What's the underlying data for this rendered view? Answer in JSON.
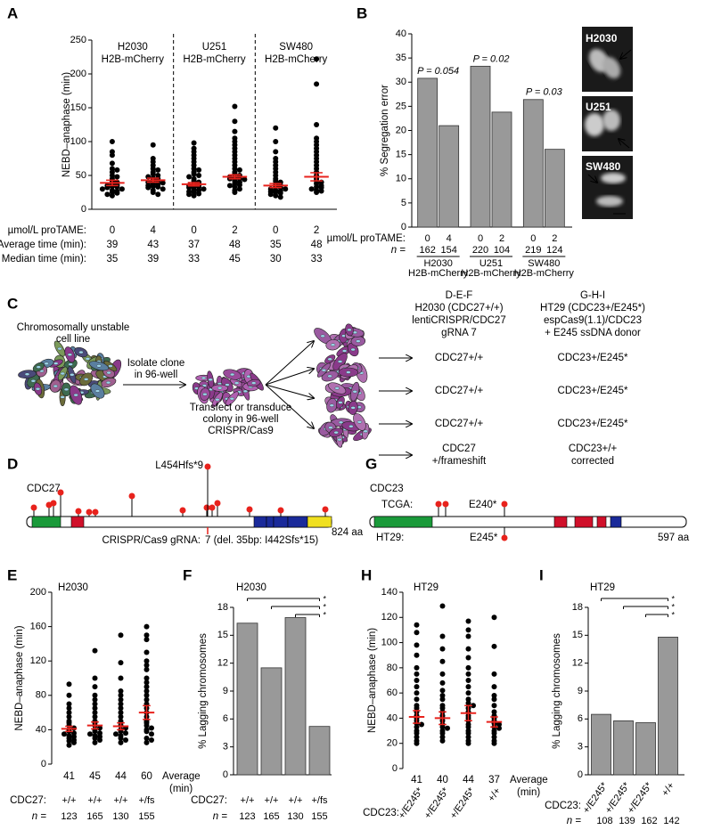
{
  "panel_labels": [
    "A",
    "B",
    "C",
    "D",
    "E",
    "F",
    "G",
    "H",
    "I"
  ],
  "chart_data": [
    {
      "type": "strip",
      "ylabel": "NEBD–anaphase (min)",
      "ylim": [
        0,
        250
      ],
      "yticks": [
        0,
        50,
        100,
        150,
        200,
        250
      ],
      "groups": [
        {
          "name": "H2030",
          "subtitle": "H2B-mCherry"
        },
        {
          "name": "U251",
          "subtitle": "H2B-mCherry"
        },
        {
          "name": "SW480",
          "subtitle": "H2B-mCherry"
        }
      ],
      "values": [
        [
          100,
          85,
          80,
          68,
          60,
          58,
          55,
          50,
          48,
          45,
          42,
          40,
          38,
          36,
          35,
          34,
          33,
          32,
          30,
          30,
          28,
          27,
          25,
          24,
          22,
          20
        ],
        [
          95,
          75,
          70,
          65,
          60,
          58,
          55,
          52,
          50,
          48,
          46,
          45,
          43,
          42,
          40,
          39,
          38,
          37,
          35,
          34,
          33,
          32,
          30,
          28,
          25,
          22
        ],
        [
          98,
          90,
          85,
          80,
          75,
          70,
          65,
          60,
          58,
          55,
          52,
          50,
          48,
          45,
          42,
          40,
          38,
          36,
          35,
          33,
          33,
          32,
          30,
          29,
          28,
          26,
          25,
          23,
          22,
          20
        ],
        [
          152,
          130,
          115,
          105,
          100,
          95,
          90,
          85,
          80,
          75,
          70,
          65,
          60,
          58,
          55,
          52,
          50,
          48,
          46,
          45,
          45,
          44,
          42,
          40,
          38,
          36,
          35,
          33,
          30,
          28,
          25
        ],
        [
          120,
          100,
          85,
          75,
          70,
          65,
          60,
          55,
          50,
          45,
          42,
          40,
          38,
          35,
          33,
          32,
          30,
          30,
          28,
          27,
          26,
          25,
          24,
          22,
          20,
          18
        ],
        [
          222,
          185,
          125,
          105,
          100,
          95,
          90,
          85,
          80,
          75,
          70,
          65,
          60,
          55,
          50,
          45,
          42,
          40,
          38,
          35,
          33,
          32,
          30,
          28,
          27,
          25
        ]
      ],
      "errors": [
        4,
        3,
        2.5,
        3,
        3,
        6
      ],
      "rows": [
        {
          "label": "µmol/L proTAME:",
          "values": [
            0,
            4,
            0,
            2,
            0,
            2
          ]
        },
        {
          "label": "Average time (min):",
          "values": [
            39,
            43,
            37,
            48,
            35,
            48
          ]
        },
        {
          "label": "Median time (min):",
          "values": [
            35,
            39,
            33,
            45,
            30,
            33
          ]
        }
      ]
    },
    {
      "type": "bar",
      "ylabel": "% Segregation error",
      "ylim": [
        0,
        40
      ],
      "yticks": [
        0,
        5,
        10,
        15,
        20,
        25,
        30,
        35,
        40
      ],
      "values": [
        30.8,
        21,
        33.3,
        23.8,
        26.4,
        16.1
      ],
      "color": "#999999",
      "annotations": [
        "P = 0.054",
        "P = 0.02",
        "P = 0.03"
      ],
      "doses_label": "µmol/L proTAME:",
      "doses": [
        0,
        4,
        0,
        2,
        0,
        2
      ],
      "n_label": "n =",
      "n": [
        162,
        154,
        220,
        104,
        219,
        124
      ],
      "groups": [
        {
          "name": "H2030",
          "subtitle": "H2B-mCherry"
        },
        {
          "name": "U251",
          "subtitle": "H2B-mCherry"
        },
        {
          "name": "SW480",
          "subtitle": "H2B-mCherry"
        }
      ]
    },
    {
      "type": "strip",
      "title": "H2030",
      "ylabel": "NEBD–anaphase (min)",
      "ylim": [
        0,
        200
      ],
      "yticks": [
        0,
        40,
        80,
        120,
        160,
        200
      ],
      "values": [
        [
          93,
          80,
          70,
          65,
          60,
          55,
          50,
          48,
          45,
          42,
          40,
          38,
          36,
          35,
          33,
          32,
          30,
          28,
          27,
          25,
          22
        ],
        [
          132,
          100,
          90,
          80,
          75,
          70,
          65,
          60,
          55,
          50,
          48,
          45,
          42,
          40,
          38,
          36,
          35,
          33,
          32,
          30,
          28,
          25
        ],
        [
          150,
          118,
          100,
          85,
          80,
          75,
          70,
          65,
          60,
          55,
          50,
          48,
          45,
          42,
          40,
          38,
          36,
          35,
          33,
          30,
          28,
          25
        ],
        [
          160,
          150,
          145,
          130,
          120,
          115,
          110,
          100,
          95,
          90,
          85,
          80,
          75,
          70,
          65,
          60,
          55,
          50,
          48,
          45,
          42,
          40,
          38,
          35,
          30,
          28,
          25
        ]
      ],
      "errors": [
        3,
        4,
        4,
        8
      ],
      "averages": [
        41,
        45,
        44,
        60
      ],
      "average_label": [
        "Average",
        "(min)"
      ],
      "category_label": "CDC27:",
      "categories": [
        "+/+",
        "+/+",
        "+/+",
        "+/fs"
      ],
      "category_colors": [
        "#000000",
        "#000000",
        "#000000",
        "#e8221c"
      ],
      "n_label": "n =",
      "n": [
        123,
        165,
        130,
        155
      ]
    },
    {
      "type": "bar",
      "title": "H2030",
      "ylabel": "% Lagging chromosomes",
      "ylim": [
        0,
        18
      ],
      "yticks": [
        0,
        3,
        6,
        9,
        12,
        15,
        18
      ],
      "values": [
        16.3,
        11.5,
        16.9,
        5.2
      ],
      "color": "#999999",
      "significance": [
        "*",
        "*",
        "*"
      ],
      "category_label": "CDC27:",
      "categories": [
        "+/+",
        "+/+",
        "+/+",
        "+/fs"
      ],
      "category_colors": [
        "#000000",
        "#000000",
        "#000000",
        "#e8221c"
      ],
      "n_label": "n =",
      "n": [
        123,
        165,
        130,
        155
      ]
    },
    {
      "type": "strip",
      "title": "HT29",
      "ylabel": "NEBD–anaphase (min)",
      "ylim": [
        0,
        140
      ],
      "yticks": [
        0,
        20,
        40,
        60,
        80,
        100,
        120,
        140
      ],
      "values": [
        [
          114,
          108,
          98,
          90,
          80,
          75,
          70,
          65,
          60,
          55,
          50,
          48,
          45,
          42,
          40,
          38,
          36,
          35,
          33,
          30,
          28,
          25,
          22,
          20
        ],
        [
          129,
          105,
          95,
          85,
          75,
          68,
          62,
          58,
          55,
          50,
          48,
          45,
          42,
          40,
          38,
          35,
          33,
          32,
          30,
          28,
          25,
          22
        ],
        [
          117,
          110,
          105,
          95,
          88,
          80,
          75,
          70,
          65,
          60,
          55,
          52,
          50,
          48,
          45,
          42,
          40,
          38,
          35,
          33,
          30,
          28,
          25,
          22,
          20
        ],
        [
          120,
          97,
          75,
          65,
          58,
          55,
          50,
          45,
          42,
          40,
          38,
          36,
          35,
          33,
          32,
          30,
          28,
          25,
          22,
          20
        ]
      ],
      "errors": [
        5,
        5,
        6,
        4
      ],
      "averages": [
        41,
        40,
        44,
        37
      ],
      "average_label": [
        "Average",
        "(min)"
      ],
      "category_label": "CDC23:",
      "categories": [
        "+/E245*",
        "+/E245*",
        "+/E245*",
        "+/+"
      ],
      "rotate_labels": true
    },
    {
      "type": "bar",
      "title": "HT29",
      "ylabel": "% Lagging chromosomes",
      "ylim": [
        0,
        18
      ],
      "yticks": [
        0,
        3,
        6,
        9,
        12,
        15,
        18
      ],
      "values": [
        6.5,
        5.8,
        5.6,
        14.8
      ],
      "color": "#999999",
      "significance": [
        "*",
        "*",
        "*"
      ],
      "category_label": "CDC23:",
      "categories": [
        "+/E245*",
        "+/E245*",
        "+/E245*",
        "+/+"
      ],
      "rotate_labels": true,
      "n_label": "n =",
      "n": [
        108,
        139,
        162,
        142
      ]
    }
  ],
  "micrographs": [
    "H2030",
    "U251",
    "SW480"
  ],
  "workflow": {
    "source": [
      "Chromosomally unstable",
      "cell line"
    ],
    "step1": [
      "Isolate clone",
      "in 96-well"
    ],
    "step2": [
      "Transfect or transduce",
      "colony in 96-well",
      "CRISPR/Cas9"
    ],
    "columns": [
      {
        "header": [
          "D-E-F",
          "H2030 (CDC27+/+)",
          "lentiCRISPR/CDC27",
          "gRNA 7"
        ],
        "outcomes": [
          [
            "CDC27+/+"
          ],
          [
            "CDC27+/+"
          ],
          [
            "CDC27+/+"
          ],
          [
            "CDC27",
            "+/frameshift"
          ]
        ]
      },
      {
        "header": [
          "G-H-I",
          "HT29 (CDC23+/E245*)",
          "espCas9(1.1)/CDC23",
          "+ E245 ssDNA donor"
        ],
        "outcomes": [
          [
            "CDC23+/E245*"
          ],
          [
            "CDC23+/E245*"
          ],
          [
            "CDC23+/E245*"
          ],
          [
            "CDC23+/+",
            "corrected"
          ]
        ]
      }
    ]
  },
  "cdc27": {
    "name": "CDC27",
    "mutation": "L454Hfs*9",
    "length": "824 aa",
    "grna_label": "CRISPR/Cas9 gRNA:",
    "grna": "7 (del. 35bp: I442Sfs*15)"
  },
  "cdc23": {
    "name": "CDC23",
    "tcga_label": "TCGA:",
    "tcga_mutation": "E240*",
    "cell_label": "HT29:",
    "cell_mutation": "E245*",
    "length": "597 aa"
  }
}
